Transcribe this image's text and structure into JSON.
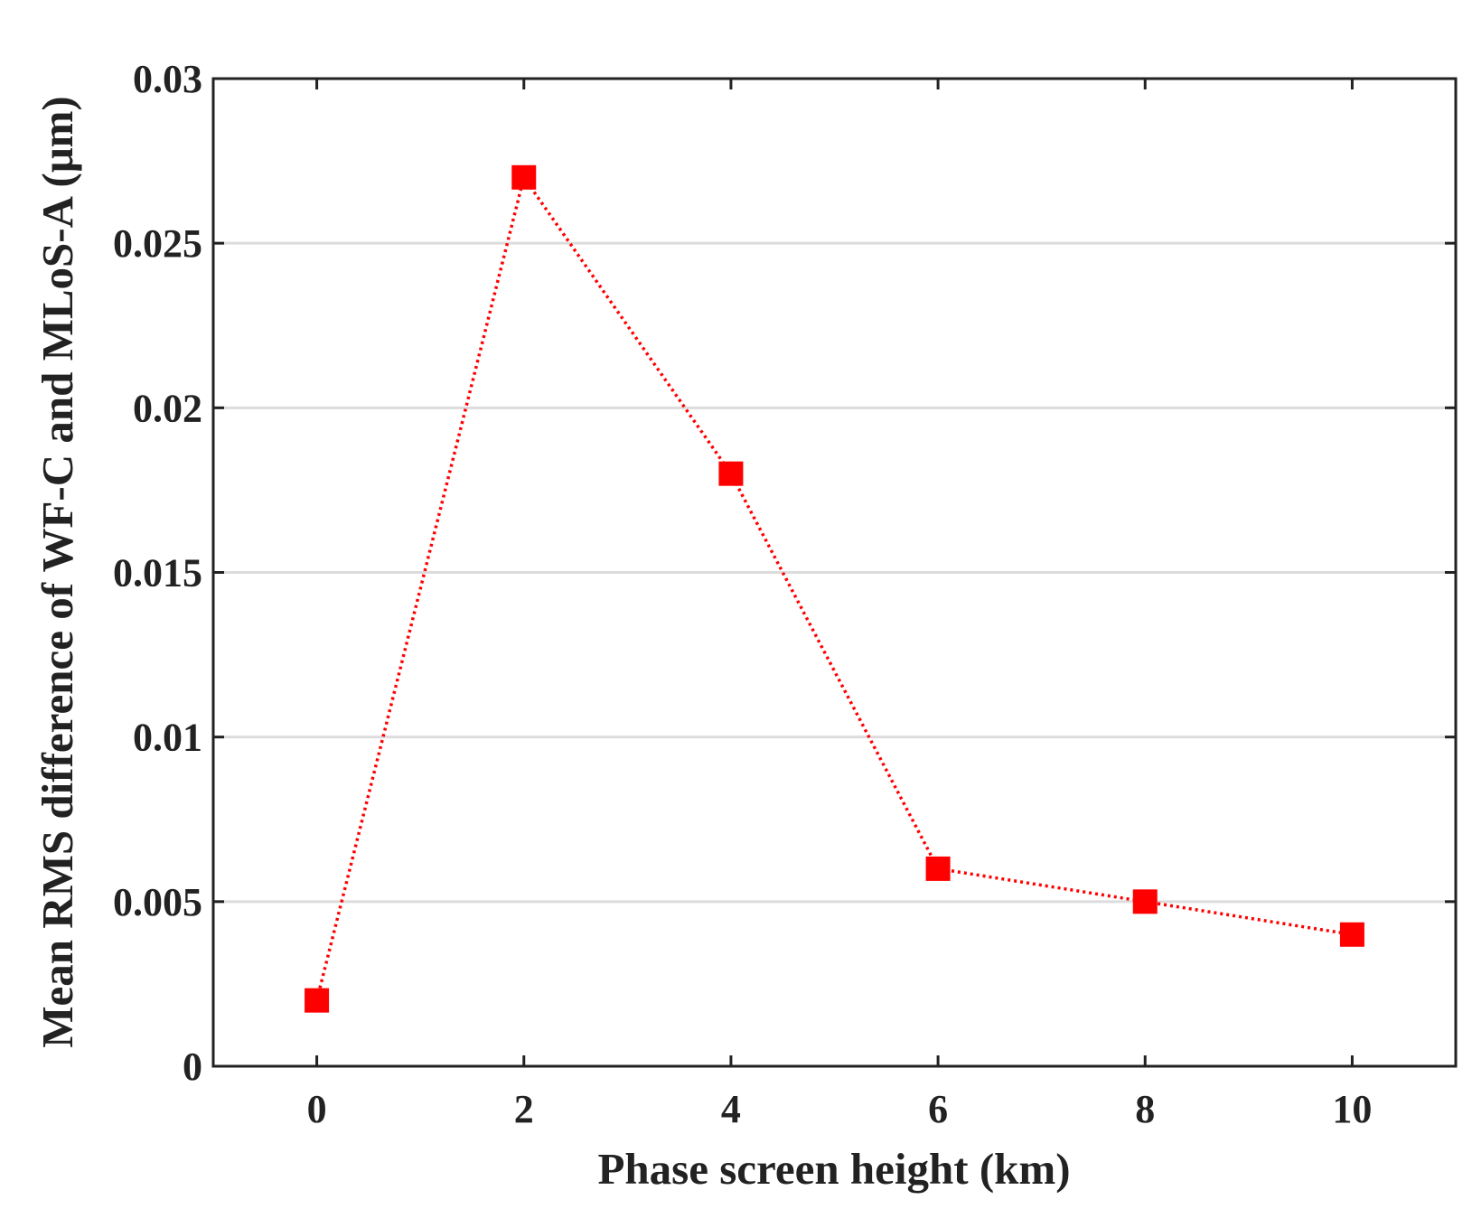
{
  "chart_data": {
    "type": "line",
    "xlabel": "Phase screen height (km)",
    "ylabel": "Mean RMS difference of WF-C and MLoS-A (μm)",
    "x": [
      0,
      2,
      4,
      6,
      8,
      10
    ],
    "series": [
      {
        "values": [
          0.002,
          0.027,
          0.018,
          0.006,
          0.005,
          0.004
        ]
      }
    ],
    "xlim": [
      -1,
      11
    ],
    "ylim": [
      0,
      0.03
    ],
    "xticks": [
      "0",
      "2",
      "4",
      "6",
      "8",
      "10"
    ],
    "yticks": [
      "0",
      "0.005",
      "0.01",
      "0.015",
      "0.02",
      "0.025",
      "0.03"
    ],
    "grid": "horizontal",
    "line_style": "dotted",
    "marker": "square",
    "color": "#ff0000"
  }
}
